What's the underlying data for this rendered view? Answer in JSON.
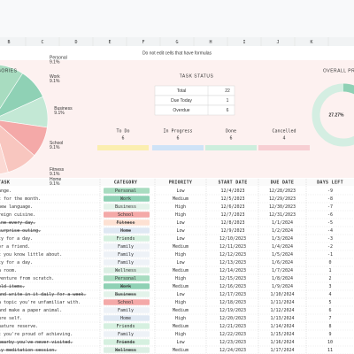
{
  "column_letters": [
    "B",
    "C",
    "D",
    "E",
    "F",
    "G",
    "H",
    "I",
    "J",
    "K"
  ],
  "note": "Do not edit cells that have formulas",
  "categories_chart": {
    "type": "pie",
    "title": "CATEGORIES",
    "slices": [
      {
        "label": "Personal",
        "value": 9.1,
        "value_label": "9.1%",
        "color": "#a8dcc0"
      },
      {
        "label": "Work",
        "value": 9.1,
        "value_label": "9.1%",
        "color": "#8fd1b5"
      },
      {
        "label": "Business",
        "value": 9.1,
        "value_label": "9.1%",
        "color": "#c3e8d5"
      },
      {
        "label": "School",
        "value": 9.1,
        "value_label": "9.1%",
        "color": "#f4a9a8"
      },
      {
        "label": "Fitness",
        "value": 9.1,
        "value_label": "9.1%",
        "color": "#f8c6bf"
      },
      {
        "label": "Home",
        "value": 9.1,
        "value_label": "9.1%",
        "color": "#fbd9d3"
      }
    ]
  },
  "task_status": {
    "title": "TASK STATUS",
    "rows": [
      [
        "Total",
        22
      ],
      [
        "Due Today",
        1
      ],
      [
        "Overdue",
        6
      ]
    ]
  },
  "status_cards": [
    {
      "label": "To Do",
      "value": 6,
      "color": "#fbeeb0"
    },
    {
      "label": "In Progress",
      "value": 6,
      "color": "#cfe3f7"
    },
    {
      "label": "Done",
      "value": 6,
      "color": "#cdeedd"
    },
    {
      "label": "Cancelled",
      "value": 4,
      "color": "#f7cfd3"
    }
  ],
  "progress": {
    "title": "OVERALL PROGRESS",
    "value": 27.27,
    "value_label": "27.27%",
    "color": "#8fd1b5",
    "track": "#d4eee2"
  },
  "table": {
    "headers": [
      "TASK",
      "CATEGORY",
      "PRIORITY",
      "START DATE",
      "DUE DATE",
      "DAYS LEFT"
    ],
    "rows": [
      {
        "task": "ange.",
        "category": "Personal",
        "category_color": "#a8dcc0",
        "priority": "Low",
        "start": "12/4/2023",
        "due": "12/28/2023",
        "days_left": -9,
        "struck": false
      },
      {
        "task": "t for the month.",
        "category": "Work",
        "category_color": "#8fd1b5",
        "priority": "Medium",
        "start": "12/5/2023",
        "due": "12/29/2023",
        "days_left": -8,
        "struck": false
      },
      {
        "task": "new language.",
        "category": "Business",
        "category_color": "#e3f3ea",
        "priority": "High",
        "start": "12/6/2023",
        "due": "12/30/2023",
        "days_left": -7,
        "struck": false
      },
      {
        "task": "reign cuisine.",
        "category": "School",
        "category_color": "#f4a9a8",
        "priority": "High",
        "start": "12/7/2023",
        "due": "12/31/2023",
        "days_left": -6,
        "struck": false
      },
      {
        "task": "ine every day.",
        "category": "Fitness",
        "category_color": "#fde1d3",
        "priority": "Low",
        "start": "12/8/2023",
        "due": "1/1/2024",
        "days_left": -5,
        "struck": true
      },
      {
        "task": "surprise outing.",
        "category": "Home",
        "category_color": "#dfe8f3",
        "priority": "Low",
        "start": "12/9/2023",
        "due": "1/2/2024",
        "days_left": -4,
        "struck": true
      },
      {
        "task": "ty for a day.",
        "category": "Friends",
        "category_color": "#d6f0e0",
        "priority": "Low",
        "start": "12/10/2023",
        "due": "1/3/2024",
        "days_left": -3,
        "struck": false
      },
      {
        "task": " or a friend.",
        "category": "Family",
        "category_color": "#eef2f7",
        "priority": "Medium",
        "start": "12/11/2023",
        "due": "1/4/2024",
        "days_left": -2,
        "struck": false
      },
      {
        "task": "t you know little about.",
        "category": "Family",
        "category_color": "#eef2f7",
        "priority": "High",
        "start": "12/12/2023",
        "due": "1/5/2024",
        "days_left": -1,
        "struck": false
      },
      {
        "task": "ty for a day.",
        "category": "Family",
        "category_color": "#eef2f7",
        "priority": "Low",
        "start": "12/13/2023",
        "due": "1/6/2024",
        "days_left": 0,
        "struck": false
      },
      {
        "task": " a room.",
        "category": "Wellness",
        "category_color": "#dcefe4",
        "priority": "Medium",
        "start": "12/14/2023",
        "due": "1/7/2024",
        "days_left": 1,
        "struck": false
      },
      {
        "task": "venture from scratch.",
        "category": "Personal",
        "category_color": "#a8dcc0",
        "priority": "High",
        "start": "12/15/2023",
        "due": "1/8/2024",
        "days_left": 2,
        "struck": false
      },
      {
        "task": "old items.",
        "category": "Work",
        "category_color": "#8fd1b5",
        "priority": "Medium",
        "start": "12/16/2023",
        "due": "1/9/2024",
        "days_left": 3,
        "struck": true
      },
      {
        "task": "and write in it daily for a week.",
        "category": "Business",
        "category_color": "#e3f3ea",
        "priority": "Low",
        "start": "12/17/2023",
        "due": "1/10/2024",
        "days_left": 4,
        "struck": true
      },
      {
        "task": " a topic you're unfamiliar with.",
        "category": "School",
        "category_color": "#f4a9a8",
        "priority": "High",
        "start": "12/18/2023",
        "due": "1/11/2024",
        "days_left": 5,
        "struck": false
      },
      {
        "task": "and make a paper animal.",
        "category": "Family",
        "category_color": "#eef2f7",
        "priority": "Medium",
        "start": "12/19/2023",
        "due": "1/12/2024",
        "days_left": 6,
        "struck": false
      },
      {
        "task": "ure self.",
        "category": "Home",
        "category_color": "#dfe8f3",
        "priority": "High",
        "start": "12/20/2023",
        "due": "1/13/2024",
        "days_left": 7,
        "struck": false
      },
      {
        "task": "nature reserve.",
        "category": "Friends",
        "category_color": "#d6f0e0",
        "priority": "Medium",
        "start": "12/21/2023",
        "due": "1/14/2024",
        "days_left": 8,
        "struck": false
      },
      {
        "task": "t you're proud of achieving.",
        "category": "Family",
        "category_color": "#eef2f7",
        "priority": "High",
        "start": "12/22/2023",
        "due": "1/15/2024",
        "days_left": 9,
        "struck": false
      },
      {
        "task": "nearby you've never visited.",
        "category": "Friends",
        "category_color": "#d6f0e0",
        "priority": "Low",
        "start": "12/23/2023",
        "due": "1/16/2024",
        "days_left": 10,
        "struck": true
      },
      {
        "task": "ly meditation session.",
        "category": "Wellness",
        "category_color": "#dcefe4",
        "priority": "Medium",
        "start": "12/24/2023",
        "due": "1/17/2024",
        "days_left": 11,
        "struck": true
      }
    ]
  }
}
